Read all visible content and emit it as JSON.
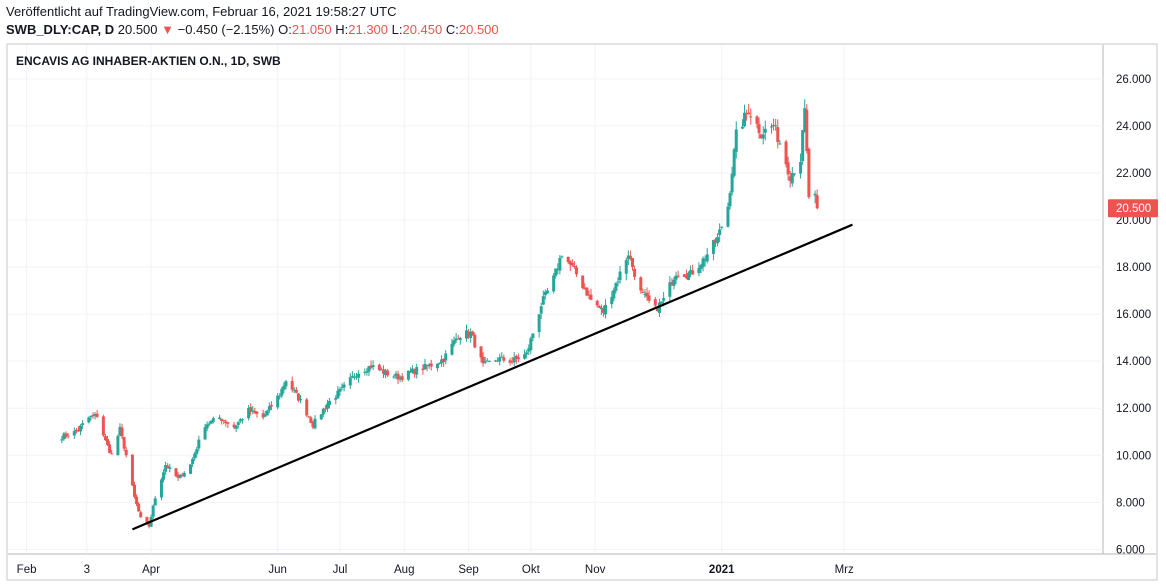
{
  "header": {
    "published": "Veröffentlicht auf TradingView.com, Februar 16, 2021 19:58:27 UTC",
    "symbol": "SWB_DLY:CAP, D",
    "last": "20.500",
    "change_arrow": "▼",
    "change": "−0.450 (−2.15%)",
    "o_key": "O:",
    "o_val": "21.050",
    "h_key": "H:",
    "h_val": "21.300",
    "l_key": "L:",
    "l_val": "20.450",
    "c_key": "C:",
    "c_val": "20.500"
  },
  "colors": {
    "up": "#26a69a",
    "down": "#ef5350",
    "grid": "#f0f3fa",
    "trendline": "#000000",
    "price_tag_bg": "#ef5350"
  },
  "chart_data": {
    "type": "candlestick",
    "title": "ENCAVIS AG INHABER-AKTIEN O.N., 1D, SWB",
    "ylim": [
      5.4,
      26.8
    ],
    "y_ticks": [
      "26.000",
      "24.000",
      "22.000",
      "20.000",
      "18.000",
      "16.000",
      "14.000",
      "12.000",
      "10.000",
      "8.000",
      "6.000"
    ],
    "x_ticks": [
      "Feb",
      "3",
      "Apr",
      "Jun",
      "Jul",
      "Aug",
      "Sep",
      "Okt",
      "Nov",
      "2021",
      "Mrz"
    ],
    "current_price": "20.500",
    "grid": true,
    "close_path": [
      [
        "2020-02-18",
        10.8
      ],
      [
        "2020-02-25",
        11.0
      ],
      [
        "2020-03-02",
        11.6
      ],
      [
        "2020-03-06",
        11.7
      ],
      [
        "2020-03-10",
        10.6
      ],
      [
        "2020-03-13",
        10.0
      ],
      [
        "2020-03-17",
        11.1
      ],
      [
        "2020-03-20",
        10.0
      ],
      [
        "2020-03-24",
        8.2
      ],
      [
        "2020-03-27",
        7.3
      ],
      [
        "2020-03-31",
        7.0
      ],
      [
        "2020-04-03",
        8.2
      ],
      [
        "2020-04-08",
        9.6
      ],
      [
        "2020-04-14",
        9.0
      ],
      [
        "2020-04-20",
        9.6
      ],
      [
        "2020-04-27",
        11.3
      ],
      [
        "2020-05-04",
        11.6
      ],
      [
        "2020-05-11",
        11.2
      ],
      [
        "2020-05-18",
        11.9
      ],
      [
        "2020-05-25",
        11.6
      ],
      [
        "2020-06-02",
        12.6
      ],
      [
        "2020-06-05",
        13.2
      ],
      [
        "2020-06-12",
        12.3
      ],
      [
        "2020-06-18",
        11.3
      ],
      [
        "2020-06-25",
        12.2
      ],
      [
        "2020-07-02",
        12.8
      ],
      [
        "2020-07-09",
        13.5
      ],
      [
        "2020-07-16",
        13.8
      ],
      [
        "2020-07-23",
        13.5
      ],
      [
        "2020-07-30",
        13.3
      ],
      [
        "2020-08-06",
        13.6
      ],
      [
        "2020-08-13",
        13.8
      ],
      [
        "2020-08-20",
        14.1
      ],
      [
        "2020-08-27",
        15.1
      ],
      [
        "2020-09-02",
        15.2
      ],
      [
        "2020-09-08",
        13.8
      ],
      [
        "2020-09-15",
        14.1
      ],
      [
        "2020-09-22",
        14.0
      ],
      [
        "2020-09-29",
        14.3
      ],
      [
        "2020-10-06",
        16.4
      ],
      [
        "2020-10-12",
        17.5
      ],
      [
        "2020-10-16",
        18.6
      ],
      [
        "2020-10-23",
        17.7
      ],
      [
        "2020-10-30",
        16.6
      ],
      [
        "2020-11-05",
        16.1
      ],
      [
        "2020-11-12",
        17.5
      ],
      [
        "2020-11-17",
        18.6
      ],
      [
        "2020-11-23",
        16.9
      ],
      [
        "2020-11-30",
        16.2
      ],
      [
        "2020-12-04",
        16.6
      ],
      [
        "2020-12-10",
        17.8
      ],
      [
        "2020-12-17",
        17.7
      ],
      [
        "2020-12-23",
        18.3
      ],
      [
        "2020-12-30",
        19.2
      ],
      [
        "2021-01-04",
        20.6
      ],
      [
        "2021-01-08",
        23.6
      ],
      [
        "2021-01-14",
        24.7
      ],
      [
        "2021-01-20",
        23.7
      ],
      [
        "2021-01-26",
        24.0
      ],
      [
        "2021-01-29",
        23.3
      ],
      [
        "2021-02-03",
        21.9
      ],
      [
        "2021-02-08",
        22.6
      ],
      [
        "2021-02-10",
        24.6
      ],
      [
        "2021-02-12",
        21.0
      ],
      [
        "2021-02-15",
        20.95
      ],
      [
        "2021-02-16",
        20.5
      ]
    ],
    "last_candle": {
      "date": "2021-02-16",
      "open": 21.05,
      "high": 21.3,
      "low": 20.45,
      "close": 20.5
    },
    "trendline": {
      "start": [
        "2020-03-23",
        6.85
      ],
      "end": [
        "2021-03-05",
        19.8
      ]
    }
  }
}
